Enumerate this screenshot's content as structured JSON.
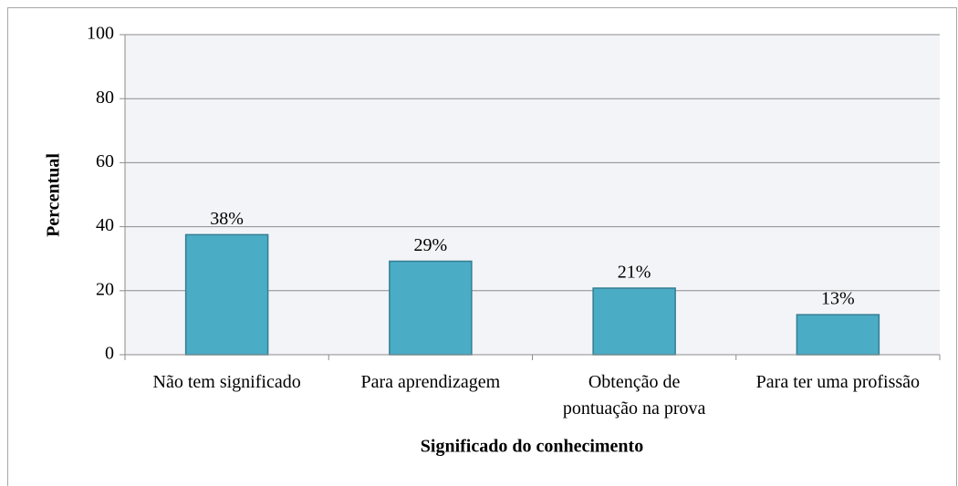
{
  "chart_data": {
    "type": "bar",
    "categories": [
      "Não tem significado",
      "Para aprendizagem",
      "Obtenção de pontuação na prova",
      "Para ter uma profissão"
    ],
    "values": [
      37.5,
      29.2,
      20.8,
      12.5
    ],
    "value_labels": [
      "38%",
      "29%",
      "21%",
      "13%"
    ],
    "color": "#4bacc6",
    "xlabel": "Significado do conhecimento",
    "ylabel": "Percentual",
    "ylim": [
      0,
      100
    ],
    "yticks": [
      0,
      20,
      40,
      60,
      80,
      100
    ],
    "grid": true
  }
}
